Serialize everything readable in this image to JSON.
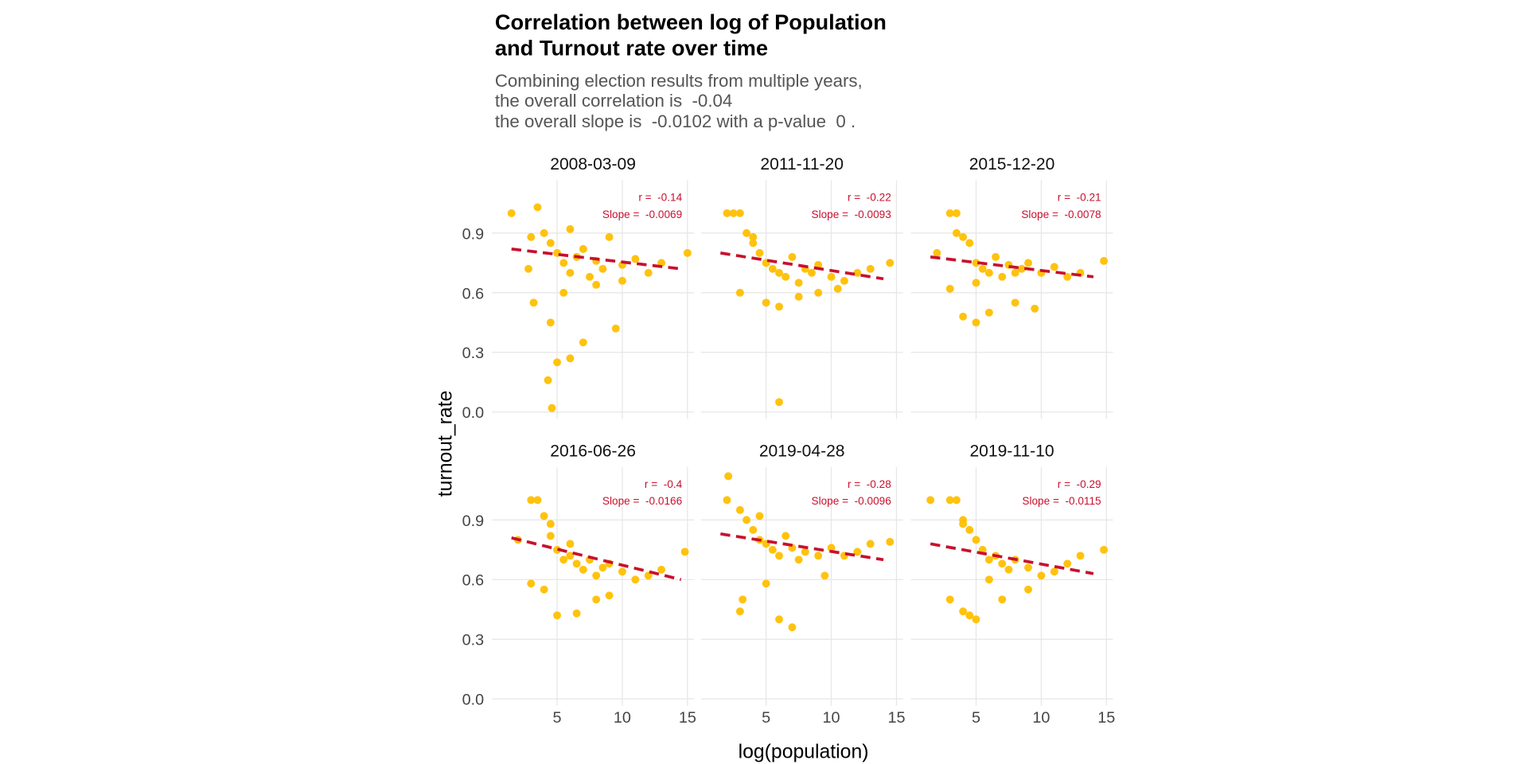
{
  "chart_data": {
    "type": "scatter",
    "title": [
      "Correlation between log of Population",
      "and Turnout rate over time"
    ],
    "subtitle": [
      "Combining election results from multiple years,",
      "the overall correlation is  -0.04",
      "the overall slope is  -0.0102 with a p-value  0 ."
    ],
    "x_label": "log(population)",
    "y_label": "turnout_rate",
    "xlim": [
      0,
      15.5
    ],
    "ylim": [
      -0.035,
      1.165
    ],
    "xticks": [
      5,
      10,
      15
    ],
    "yticks": [
      {
        "value": 0,
        "label": "0.0"
      },
      0.3,
      0.6,
      0.9
    ],
    "grid": true,
    "point_color": "#ffc20e",
    "trend_color": "#c8102e",
    "facets": [
      {
        "title": "2008-03-09",
        "r_label": "r =  -0.14",
        "slope_label": "Slope =  -0.0069",
        "x": [
          1.5,
          3.5,
          2.8,
          3.2,
          4,
          4.5,
          5,
          5.5,
          6,
          6.5,
          7,
          7.5,
          8,
          8.5,
          9,
          10,
          11,
          12,
          13,
          15,
          4.3,
          4.6,
          5,
          6,
          7,
          9.5,
          4.5,
          5.5,
          3,
          6,
          8,
          10
        ],
        "y": [
          1.0,
          1.03,
          0.72,
          0.55,
          0.9,
          0.85,
          0.8,
          0.75,
          0.7,
          0.78,
          0.82,
          0.68,
          0.76,
          0.72,
          0.88,
          0.74,
          0.77,
          0.7,
          0.75,
          0.8,
          0.16,
          0.02,
          0.25,
          0.27,
          0.35,
          0.42,
          0.45,
          0.6,
          0.88,
          0.92,
          0.64,
          0.66
        ],
        "trend": {
          "x": [
            1.5,
            14.5
          ],
          "y": [
            0.82,
            0.72
          ]
        }
      },
      {
        "title": "2011-11-20",
        "r_label": "r =  -0.22",
        "slope_label": "Slope =  -0.0093",
        "x": [
          2,
          2.5,
          3,
          3.5,
          4,
          4.5,
          5,
          5.5,
          6,
          6.5,
          7,
          7.5,
          8,
          8.5,
          9,
          10,
          11,
          12,
          13,
          14.5,
          3,
          5,
          6,
          7.5,
          9,
          10.5,
          4,
          6
        ],
        "y": [
          1,
          1,
          1,
          0.9,
          0.85,
          0.8,
          0.75,
          0.72,
          0.7,
          0.68,
          0.78,
          0.65,
          0.72,
          0.7,
          0.74,
          0.68,
          0.66,
          0.7,
          0.72,
          0.75,
          0.6,
          0.55,
          0.05,
          0.58,
          0.6,
          0.62,
          0.88,
          0.53
        ],
        "trend": {
          "x": [
            1.5,
            14
          ],
          "y": [
            0.8,
            0.67
          ]
        }
      },
      {
        "title": "2015-12-20",
        "r_label": "r =  -0.21",
        "slope_label": "Slope =  -0.0078",
        "x": [
          2,
          3,
          3.5,
          4,
          4.5,
          5,
          5.5,
          6,
          6.5,
          7,
          7.5,
          8,
          8.5,
          9,
          10,
          11,
          12,
          13,
          14.8,
          3,
          4,
          5,
          6,
          8,
          9.5,
          3.5,
          5
        ],
        "y": [
          0.8,
          1,
          1,
          0.88,
          0.85,
          0.75,
          0.72,
          0.7,
          0.78,
          0.68,
          0.74,
          0.7,
          0.72,
          0.75,
          0.7,
          0.73,
          0.68,
          0.7,
          0.76,
          0.62,
          0.48,
          0.45,
          0.5,
          0.55,
          0.52,
          0.9,
          0.65
        ],
        "trend": {
          "x": [
            1.5,
            14
          ],
          "y": [
            0.78,
            0.68
          ]
        }
      },
      {
        "title": "2016-06-26",
        "r_label": "r =  -0.4",
        "slope_label": "Slope =  -0.0166",
        "x": [
          2,
          3,
          3.5,
          4,
          4.5,
          5,
          5.5,
          6,
          6.5,
          7,
          7.5,
          8,
          8.5,
          9,
          10,
          11,
          12,
          13,
          14.8,
          3,
          4,
          5,
          6.5,
          8,
          9,
          4.5,
          6
        ],
        "y": [
          0.8,
          1,
          1,
          0.92,
          0.88,
          0.75,
          0.7,
          0.72,
          0.68,
          0.65,
          0.7,
          0.62,
          0.66,
          0.68,
          0.64,
          0.6,
          0.62,
          0.65,
          0.74,
          0.58,
          0.55,
          0.42,
          0.43,
          0.5,
          0.52,
          0.82,
          0.78
        ],
        "trend": {
          "x": [
            1.5,
            14.5
          ],
          "y": [
            0.81,
            0.6
          ]
        }
      },
      {
        "title": "2019-04-28",
        "r_label": "r =  -0.28",
        "slope_label": "Slope =  -0.0096",
        "x": [
          2,
          2.1,
          3,
          3.5,
          4,
          4.5,
          5,
          5.5,
          6,
          6.5,
          7,
          7.5,
          8,
          9,
          10,
          11,
          12,
          13,
          14.5,
          3,
          6,
          7,
          3.2,
          5,
          9.5,
          4.5
        ],
        "y": [
          1,
          1.12,
          0.95,
          0.9,
          0.85,
          0.8,
          0.78,
          0.75,
          0.72,
          0.82,
          0.76,
          0.7,
          0.74,
          0.72,
          0.76,
          0.72,
          0.74,
          0.78,
          0.79,
          0.44,
          0.4,
          0.36,
          0.5,
          0.58,
          0.62,
          0.92
        ],
        "trend": {
          "x": [
            1.5,
            14
          ],
          "y": [
            0.83,
            0.7
          ]
        }
      },
      {
        "title": "2019-11-10",
        "r_label": "r =  -0.29",
        "slope_label": "Slope =  -0.0115",
        "x": [
          1.5,
          3,
          3.5,
          4,
          4.5,
          5,
          5.5,
          6,
          6.5,
          7,
          7.5,
          8,
          9,
          10,
          11,
          12,
          13,
          14.8,
          3,
          4,
          4.5,
          5,
          7,
          9,
          4,
          6
        ],
        "y": [
          1,
          1,
          1,
          0.88,
          0.85,
          0.8,
          0.75,
          0.7,
          0.72,
          0.68,
          0.65,
          0.7,
          0.66,
          0.62,
          0.64,
          0.68,
          0.72,
          0.75,
          0.5,
          0.44,
          0.42,
          0.4,
          0.5,
          0.55,
          0.9,
          0.6
        ],
        "trend": {
          "x": [
            1.5,
            14
          ],
          "y": [
            0.78,
            0.63
          ]
        }
      }
    ]
  }
}
